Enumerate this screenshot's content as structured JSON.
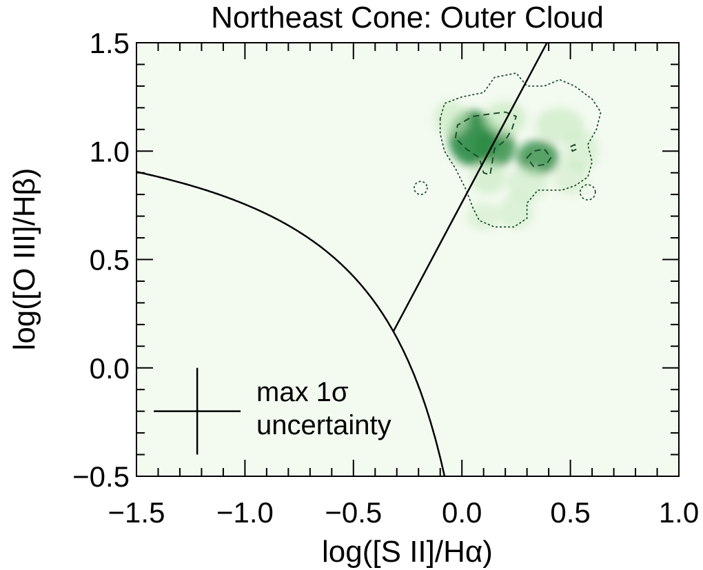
{
  "chart_data": {
    "type": "scatter",
    "title": "Northeast Cone: Outer Cloud",
    "xlabel": "log([S II]/Hα)",
    "ylabel": "log([O III]/Hβ)",
    "xlim": [
      -1.5,
      1.0
    ],
    "ylim": [
      -0.5,
      1.5
    ],
    "xticks": [
      -1.5,
      -1.0,
      -0.5,
      0.0,
      0.5,
      1.0
    ],
    "xtick_labels": [
      "−1.5",
      "−1.0",
      "−0.5",
      "0.0",
      "0.5",
      "1.0"
    ],
    "yticks": [
      -0.5,
      0.0,
      0.5,
      1.0,
      1.5
    ],
    "ytick_labels": [
      "−0.5",
      "0.0",
      "0.5",
      "1.0",
      "1.5"
    ],
    "grid": false,
    "colors": {
      "plot_background": "#f3faf0",
      "density_high": "#2a8a42",
      "density_low": "#c7e9c0",
      "contour": "#1d4d2a",
      "lines": "#000000"
    },
    "density_blobs": [
      {
        "x": 0.05,
        "y": 1.06,
        "sx": 0.07,
        "sy": 0.08,
        "w": 1.0
      },
      {
        "x": 0.15,
        "y": 1.02,
        "sx": 0.06,
        "sy": 0.06,
        "w": 0.85
      },
      {
        "x": 0.2,
        "y": 1.15,
        "sx": 0.06,
        "sy": 0.05,
        "w": 0.6
      },
      {
        "x": 0.35,
        "y": 0.97,
        "sx": 0.06,
        "sy": 0.05,
        "w": 0.8
      },
      {
        "x": 0.45,
        "y": 1.12,
        "sx": 0.07,
        "sy": 0.05,
        "w": 0.5
      },
      {
        "x": 0.12,
        "y": 0.88,
        "sx": 0.05,
        "sy": 0.05,
        "w": 0.5
      },
      {
        "x": 0.3,
        "y": 0.85,
        "sx": 0.06,
        "sy": 0.05,
        "w": 0.35
      },
      {
        "x": 0.25,
        "y": 0.72,
        "sx": 0.05,
        "sy": 0.05,
        "w": 0.3
      },
      {
        "x": -0.05,
        "y": 1.15,
        "sx": 0.05,
        "sy": 0.05,
        "w": 0.45
      },
      {
        "x": 0.55,
        "y": 1.0,
        "sx": 0.05,
        "sy": 0.06,
        "w": 0.35
      },
      {
        "x": 0.5,
        "y": 0.88,
        "sx": 0.05,
        "sy": 0.05,
        "w": 0.25
      },
      {
        "x": 0.1,
        "y": 0.7,
        "sx": 0.05,
        "sy": 0.04,
        "w": 0.22
      }
    ],
    "kewley_curve": {
      "x_from": -1.5,
      "x_to": -0.07,
      "label": ""
    },
    "seyfert_liner_line": {
      "x": [
        -0.315,
        0.392
      ],
      "y": [
        0.17,
        1.5
      ]
    },
    "contours": {
      "outer_dotted": [
        [
          -0.1,
          1.15
        ],
        [
          -0.08,
          1.22
        ],
        [
          0.0,
          1.25
        ],
        [
          0.1,
          1.27
        ],
        [
          0.15,
          1.34
        ],
        [
          0.25,
          1.36
        ],
        [
          0.3,
          1.3
        ],
        [
          0.38,
          1.3
        ],
        [
          0.45,
          1.33
        ],
        [
          0.52,
          1.3
        ],
        [
          0.6,
          1.24
        ],
        [
          0.64,
          1.18
        ],
        [
          0.62,
          1.1
        ],
        [
          0.58,
          1.03
        ],
        [
          0.6,
          0.95
        ],
        [
          0.58,
          0.88
        ],
        [
          0.52,
          0.84
        ],
        [
          0.46,
          0.82
        ],
        [
          0.35,
          0.82
        ],
        [
          0.3,
          0.76
        ],
        [
          0.3,
          0.69
        ],
        [
          0.24,
          0.65
        ],
        [
          0.15,
          0.65
        ],
        [
          0.08,
          0.68
        ],
        [
          0.05,
          0.74
        ],
        [
          0.02,
          0.82
        ],
        [
          -0.03,
          0.92
        ],
        [
          -0.08,
          1.0
        ],
        [
          -0.1,
          1.08
        ]
      ],
      "small_dotted_circles": [
        {
          "x": -0.19,
          "y": 0.83,
          "r": 0.03
        },
        {
          "x": 0.58,
          "y": 0.81,
          "r": 0.035
        }
      ],
      "inner_dashed": [
        [
          [
            -0.03,
            1.06
          ],
          [
            -0.02,
            1.12
          ],
          [
            0.05,
            1.16
          ],
          [
            0.12,
            1.17
          ],
          [
            0.2,
            1.18
          ],
          [
            0.25,
            1.16
          ],
          [
            0.23,
            1.1
          ],
          [
            0.2,
            1.05
          ],
          [
            0.15,
            1.01
          ],
          [
            0.14,
            0.95
          ],
          [
            0.13,
            0.89
          ],
          [
            0.1,
            0.9
          ],
          [
            0.08,
            0.97
          ],
          [
            0.05,
            0.99
          ],
          [
            0.02,
            1.01
          ]
        ],
        [
          [
            0.3,
            0.97
          ],
          [
            0.33,
            1.0
          ],
          [
            0.38,
            1.01
          ],
          [
            0.41,
            0.97
          ],
          [
            0.39,
            0.94
          ],
          [
            0.33,
            0.93
          ]
        ],
        [
          [
            0.5,
            1.02
          ],
          [
            0.52,
            1.03
          ],
          [
            0.53,
            1.01
          ],
          [
            0.51,
            1.0
          ]
        ]
      ]
    },
    "error_bar": {
      "x": -1.22,
      "y": -0.2,
      "xerr": 0.2,
      "yerr": 0.2,
      "label_line1": "max 1σ",
      "label_line2": "uncertainty"
    }
  }
}
